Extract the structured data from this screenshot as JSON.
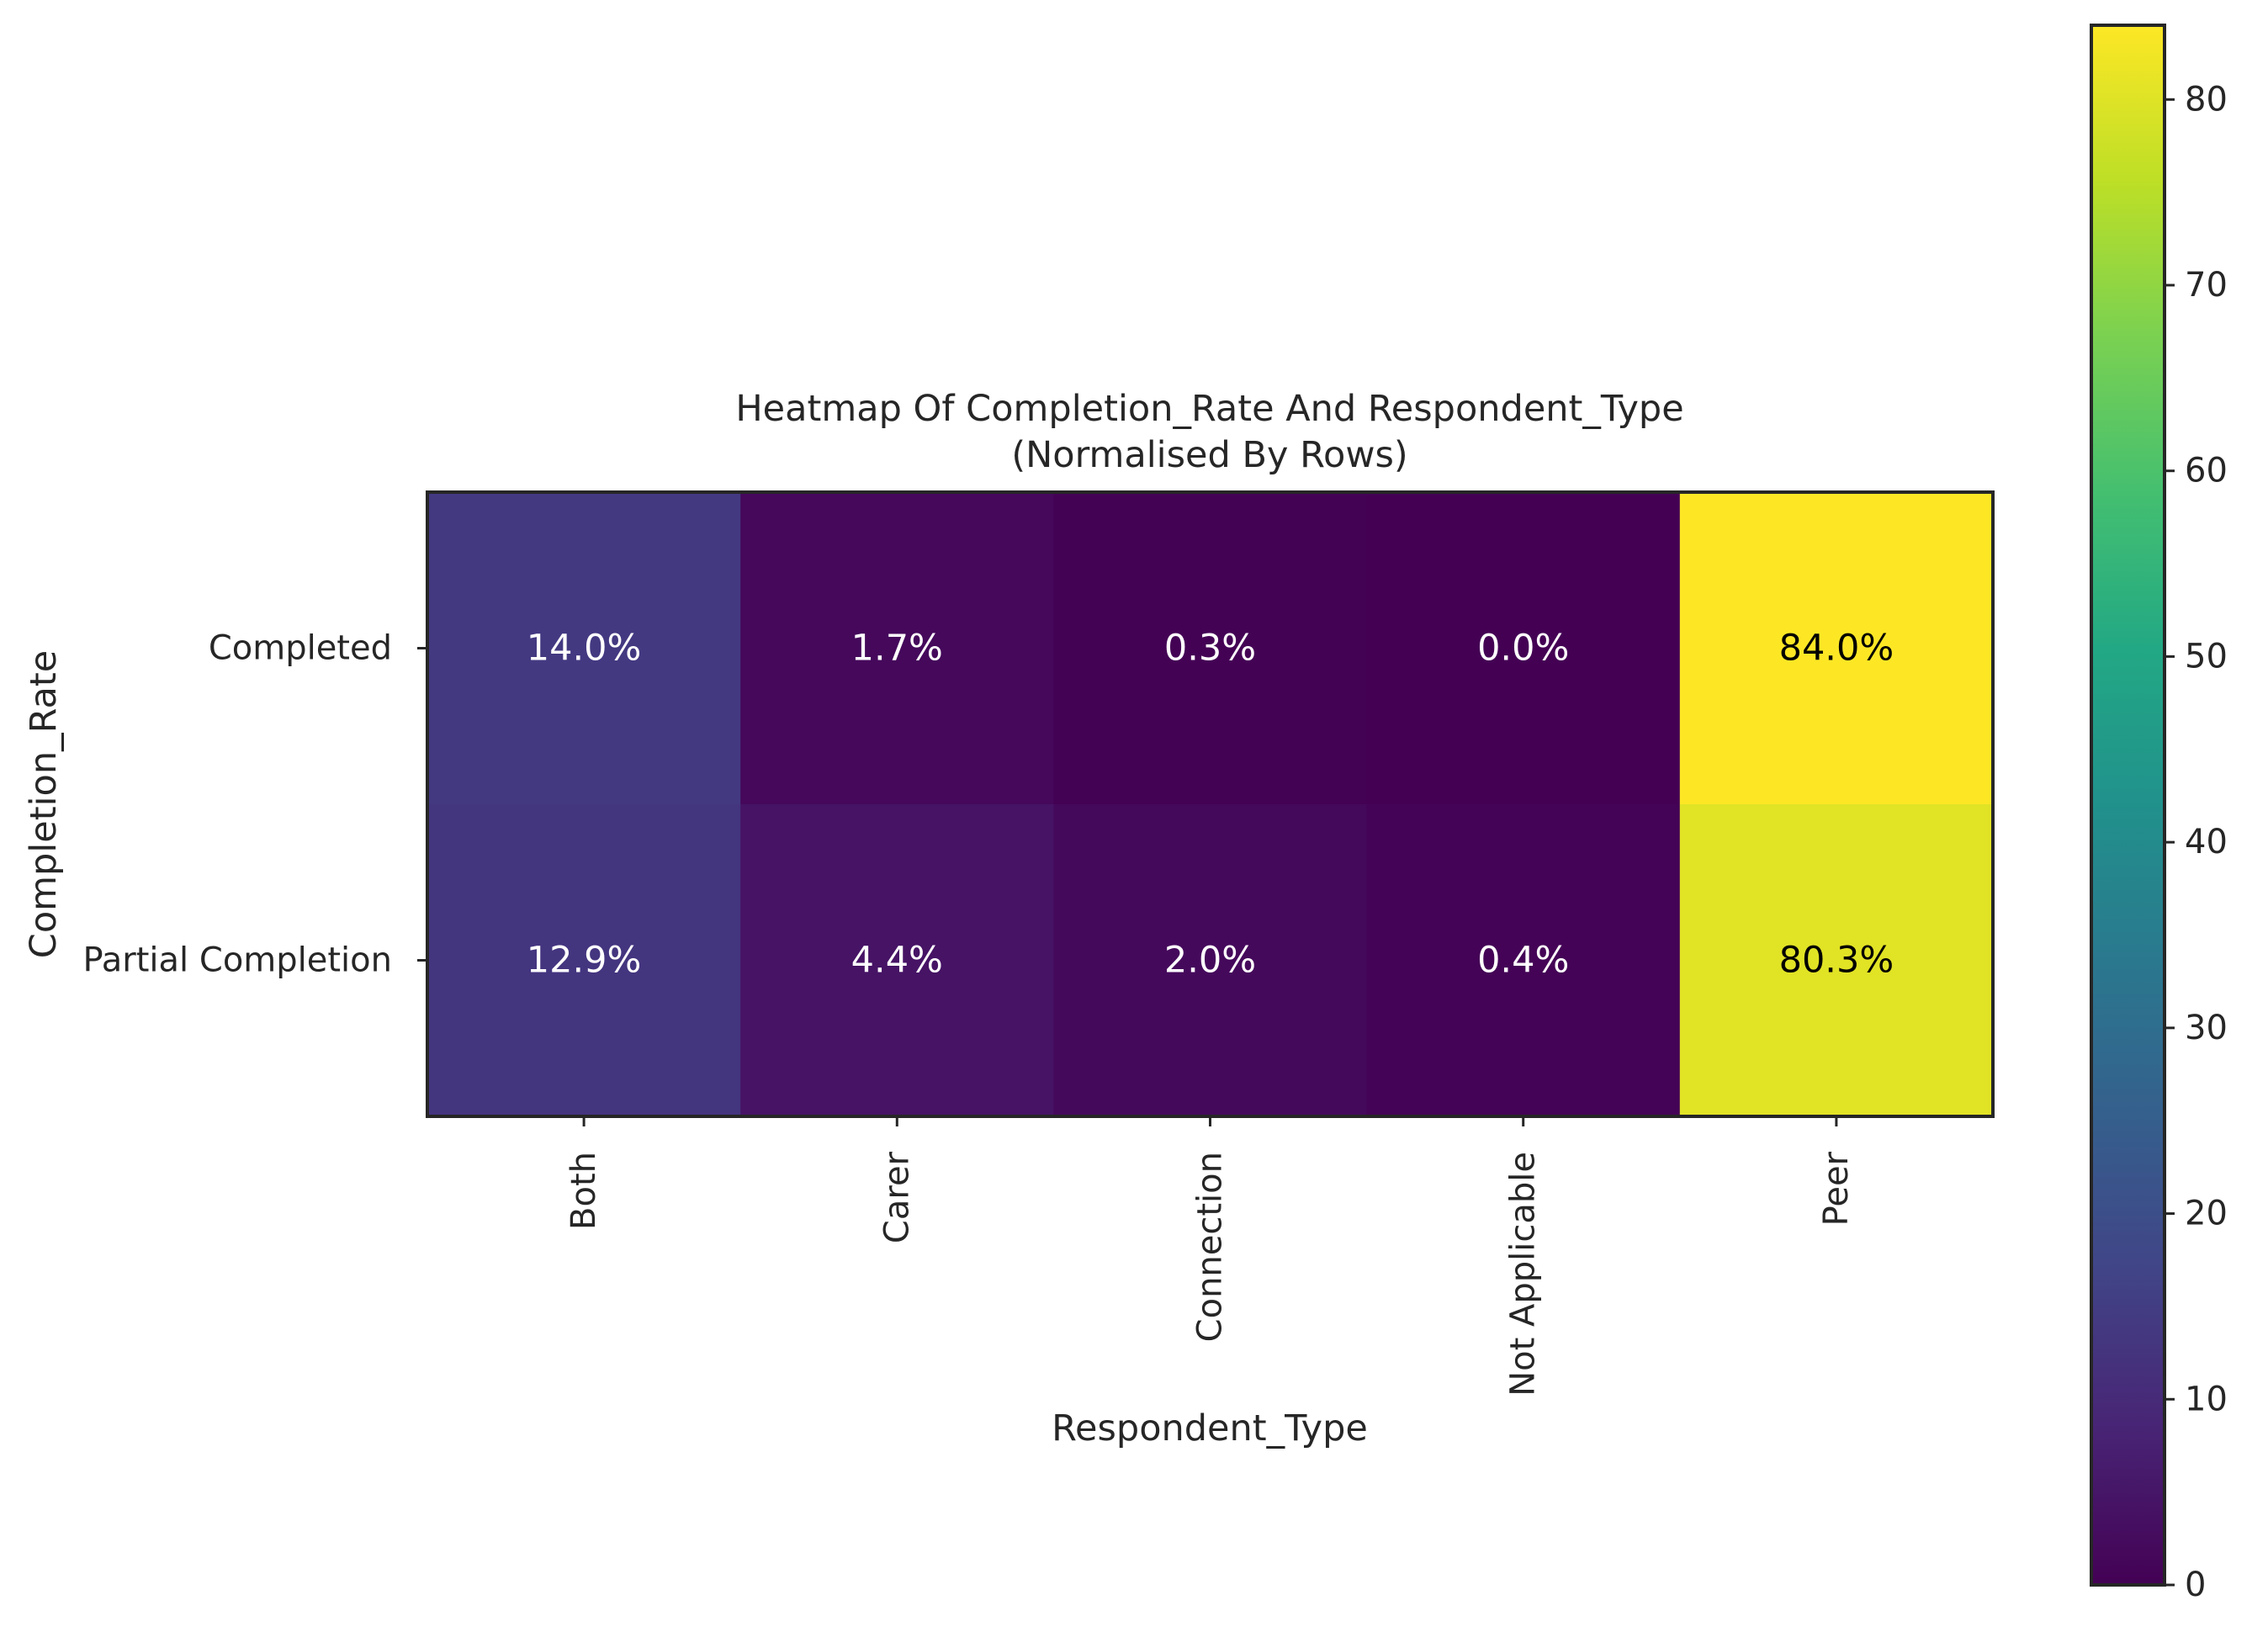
{
  "chart_data": {
    "type": "heatmap",
    "title": "Heatmap Of Completion_Rate And Respondent_Type",
    "subtitle": "(Normalised By Rows)",
    "xlabel": "Respondent_Type",
    "ylabel": "Completion_Rate",
    "x_categories": [
      "Both",
      "Carer",
      "Connection",
      "Not Applicable",
      "Peer"
    ],
    "y_categories": [
      "Completed",
      "Partial Completion"
    ],
    "values": [
      [
        14.0,
        1.7,
        0.3,
        0.0,
        84.0
      ],
      [
        12.9,
        4.4,
        2.0,
        0.4,
        80.3
      ]
    ],
    "cell_labels": [
      [
        "14.0%",
        "1.7%",
        "0.3%",
        "0.0%",
        "84.0%"
      ],
      [
        "12.9%",
        "4.4%",
        "2.0%",
        "0.4%",
        "80.3%"
      ]
    ],
    "colormap": "viridis",
    "colorbar": {
      "range": [
        0,
        84
      ],
      "ticks": [
        "0",
        "10",
        "20",
        "30",
        "40",
        "50",
        "60",
        "70",
        "80"
      ]
    },
    "grid": false,
    "colors": {
      "axis": "#262626",
      "text_dark": "#000000",
      "text_light": "#ffffff"
    }
  }
}
